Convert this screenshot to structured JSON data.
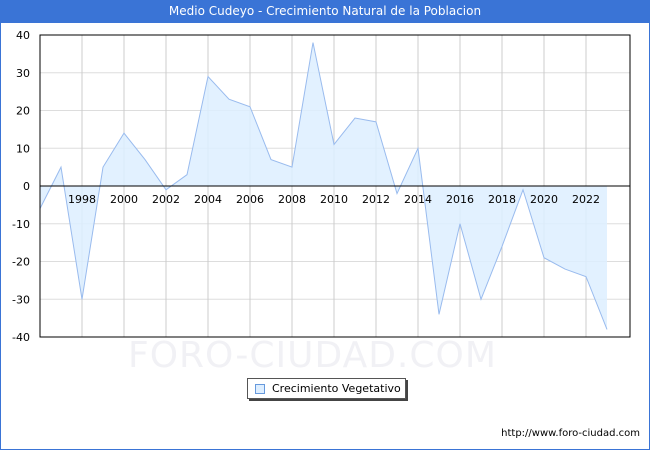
{
  "header": {
    "title": "Medio Cudeyo - Crecimiento Natural de la Poblacion"
  },
  "legend": {
    "label": "Crecimiento Vegetativo"
  },
  "footer": {
    "source": "http://www.foro-ciudad.com"
  },
  "watermark": "FORO-CIUDAD.COM",
  "colors": {
    "header_bg": "#3a74d6",
    "line": "#99bbee",
    "fill": "#ddeeff",
    "grid": "#cccccc"
  },
  "chart_data": {
    "type": "area",
    "title": "Medio Cudeyo - Crecimiento Natural de la Poblacion",
    "xlabel": "",
    "ylabel": "",
    "ylim": [
      -40,
      40
    ],
    "yticks": [
      40,
      30,
      20,
      10,
      0,
      -10,
      -20,
      -30,
      -40
    ],
    "xticks": [
      1998,
      2000,
      2002,
      2004,
      2006,
      2008,
      2010,
      2012,
      2014,
      2016,
      2018,
      2020,
      2022
    ],
    "grid": true,
    "legend_position": "bottom",
    "x": [
      1996,
      1997,
      1998,
      1999,
      2000,
      2001,
      2002,
      2003,
      2004,
      2005,
      2006,
      2007,
      2008,
      2009,
      2010,
      2011,
      2012,
      2013,
      2014,
      2015,
      2016,
      2017,
      2018,
      2019,
      2020,
      2021,
      2022,
      2023
    ],
    "series": [
      {
        "name": "Crecimiento Vegetativo",
        "values": [
          -6,
          5,
          -30,
          5,
          14,
          7,
          -1,
          3,
          29,
          23,
          21,
          7,
          5,
          38,
          11,
          18,
          17,
          -2,
          10,
          -34,
          -10,
          -30,
          -16,
          -1,
          -19,
          -22,
          -24,
          -38
        ]
      }
    ]
  }
}
